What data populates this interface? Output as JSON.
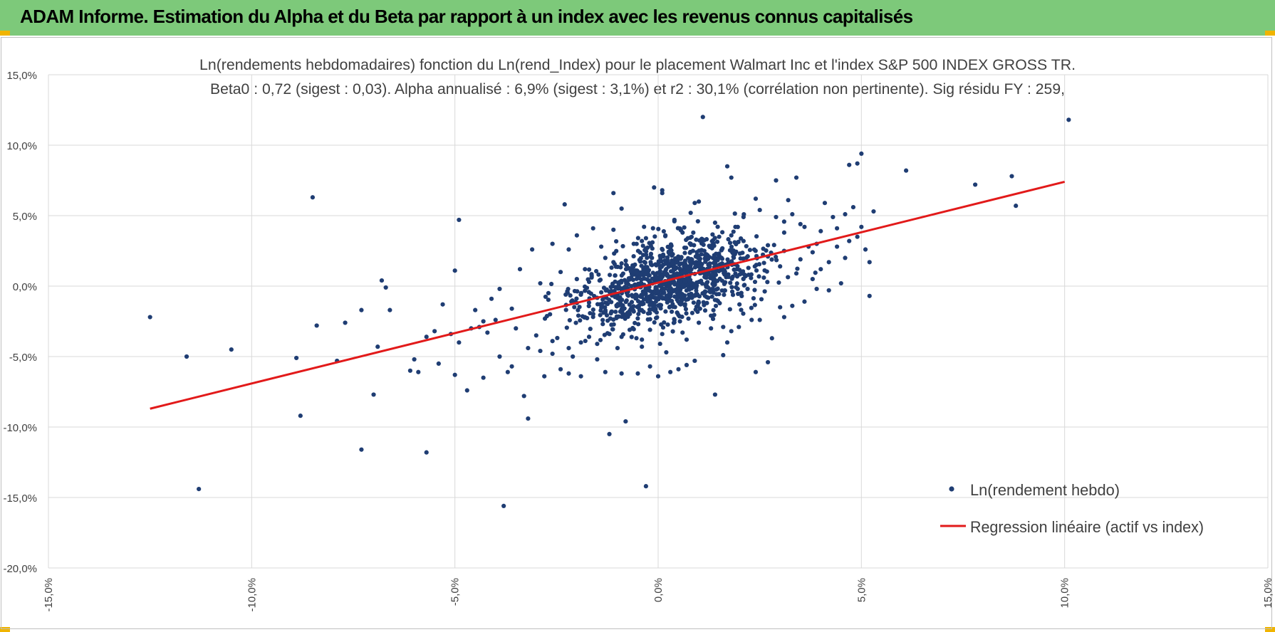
{
  "banner": {
    "title": "ADAM Informe. Estimation du Alpha et du Beta par rapport à un index avec les revenus connus capitalisés"
  },
  "colors": {
    "banner": "#7dc97a",
    "accent": "#f0b400",
    "points": "#1f3d73",
    "regression": "#e21a1a",
    "grid": "#d9d9d9"
  },
  "chart_data": {
    "type": "scatter",
    "title": "Ln(rendements hebdomadaires) fonction du Ln(rend_Index) pour le placement Walmart Inc et l'index S&P 500 INDEX GROSS TR.",
    "subtitle": "Beta0 : 0,72 (sigest : 0,03). Alpha annualisé : 6,9% (sigest : 3,1%) et r2 : 30,1% (corrélation non pertinente). Sig résidu FY : 259,",
    "xlim": [
      -0.15,
      0.15
    ],
    "ylim": [
      -0.2,
      0.15
    ],
    "x_ticks": [
      -0.15,
      -0.1,
      -0.05,
      0.0,
      0.05,
      0.1,
      0.15
    ],
    "x_tick_labels": [
      "-15,0%",
      "-10,0%",
      "-5,0%",
      "0,0%",
      "5,0%",
      "10,0%",
      "15,0%"
    ],
    "y_ticks": [
      0.15,
      0.1,
      0.05,
      0.0,
      -0.05,
      -0.1,
      -0.15,
      -0.2
    ],
    "y_tick_labels": [
      "15,0%",
      "10,0%",
      "5,0%",
      "0,0%",
      "-5,0%",
      "-10,0%",
      "-15,0%",
      "-20,0%"
    ],
    "grid": true,
    "legend_position": "bottom-right",
    "series": [
      {
        "name": "Ln(rendement hebdo)",
        "type": "scatter",
        "points": [
          [
            -0.125,
            -0.022
          ],
          [
            -0.116,
            -0.05
          ],
          [
            -0.113,
            -0.144
          ],
          [
            -0.105,
            -0.045
          ],
          [
            -0.085,
            0.063
          ],
          [
            -0.084,
            -0.028
          ],
          [
            -0.089,
            -0.051
          ],
          [
            -0.088,
            -0.092
          ],
          [
            -0.079,
            -0.053
          ],
          [
            -0.077,
            -0.026
          ],
          [
            -0.073,
            -0.017
          ],
          [
            -0.073,
            -0.116
          ],
          [
            -0.07,
            -0.077
          ],
          [
            -0.069,
            -0.043
          ],
          [
            -0.068,
            0.004
          ],
          [
            -0.067,
            -0.001
          ],
          [
            -0.066,
            -0.017
          ],
          [
            -0.061,
            -0.06
          ],
          [
            -0.06,
            -0.052
          ],
          [
            -0.059,
            -0.061
          ],
          [
            -0.057,
            -0.118
          ],
          [
            -0.057,
            -0.036
          ],
          [
            -0.055,
            -0.032
          ],
          [
            -0.054,
            -0.055
          ],
          [
            -0.053,
            -0.013
          ],
          [
            -0.051,
            -0.034
          ],
          [
            -0.05,
            0.011
          ],
          [
            -0.05,
            -0.063
          ],
          [
            -0.049,
            0.047
          ],
          [
            -0.049,
            -0.04
          ],
          [
            -0.047,
            -0.074
          ],
          [
            -0.046,
            -0.03
          ],
          [
            -0.044,
            -0.029
          ],
          [
            -0.043,
            -0.025
          ],
          [
            -0.043,
            -0.065
          ],
          [
            -0.042,
            -0.033
          ],
          [
            -0.04,
            -0.024
          ],
          [
            -0.039,
            -0.05
          ],
          [
            -0.038,
            -0.156
          ],
          [
            -0.037,
            -0.061
          ],
          [
            -0.036,
            -0.057
          ],
          [
            -0.035,
            -0.03
          ],
          [
            -0.033,
            -0.078
          ],
          [
            -0.032,
            -0.094
          ],
          [
            -0.03,
            -0.035
          ],
          [
            -0.028,
            -0.064
          ],
          [
            -0.026,
            -0.048
          ],
          [
            -0.024,
            -0.059
          ],
          [
            -0.023,
            0.058
          ],
          [
            -0.022,
            -0.062
          ],
          [
            -0.021,
            -0.05
          ],
          [
            -0.02,
            -0.012
          ],
          [
            -0.019,
            -0.064
          ],
          [
            -0.018,
            -0.022
          ],
          [
            -0.017,
            -0.036
          ],
          [
            -0.016,
            0.041
          ],
          [
            -0.015,
            -0.052
          ],
          [
            -0.013,
            -0.061
          ],
          [
            -0.012,
            -0.105
          ],
          [
            -0.011,
            0.066
          ],
          [
            -0.01,
            -0.044
          ],
          [
            -0.009,
            -0.062
          ],
          [
            -0.009,
            0.055
          ],
          [
            -0.008,
            -0.096
          ],
          [
            -0.007,
            -0.031
          ],
          [
            -0.006,
            -0.018
          ],
          [
            -0.005,
            -0.062
          ],
          [
            -0.004,
            -0.043
          ],
          [
            -0.003,
            -0.142
          ],
          [
            -0.003,
            0.034
          ],
          [
            -0.002,
            -0.057
          ],
          [
            -0.001,
            0.07
          ],
          [
            0.0,
            -0.064
          ],
          [
            0.001,
            0.068
          ],
          [
            0.002,
            -0.047
          ],
          [
            0.003,
            -0.061
          ],
          [
            0.004,
            0.046
          ],
          [
            0.005,
            -0.059
          ],
          [
            0.006,
            -0.033
          ],
          [
            0.007,
            -0.056
          ],
          [
            0.008,
            0.052
          ],
          [
            0.009,
            0.059
          ],
          [
            0.01,
            0.06
          ],
          [
            0.011,
            0.12
          ],
          [
            0.012,
            -0.012
          ],
          [
            0.013,
            -0.03
          ],
          [
            0.015,
            0.035
          ],
          [
            0.016,
            -0.049
          ],
          [
            0.017,
            -0.04
          ],
          [
            0.018,
            -0.032
          ],
          [
            0.019,
            0.042
          ],
          [
            0.02,
            -0.013
          ],
          [
            0.021,
            0.032
          ],
          [
            0.022,
            -0.002
          ],
          [
            0.023,
            -0.024
          ],
          [
            0.024,
            -0.061
          ],
          [
            0.025,
            -0.024
          ],
          [
            0.026,
            0.006
          ],
          [
            0.027,
            -0.054
          ],
          [
            0.028,
            -0.037
          ],
          [
            0.029,
            0.049
          ],
          [
            0.03,
            -0.015
          ],
          [
            0.031,
            -0.022
          ],
          [
            0.032,
            0.061
          ],
          [
            0.033,
            -0.014
          ],
          [
            0.034,
            0.077
          ],
          [
            0.035,
            0.044
          ],
          [
            0.036,
            -0.011
          ],
          [
            0.037,
            0.028
          ],
          [
            0.038,
            0.005
          ],
          [
            0.039,
            -0.002
          ],
          [
            0.04,
            0.039
          ],
          [
            0.041,
            0.059
          ],
          [
            0.042,
            -0.003
          ],
          [
            0.043,
            0.049
          ],
          [
            0.044,
            0.041
          ],
          [
            0.045,
            0.002
          ],
          [
            0.046,
            0.051
          ],
          [
            0.047,
            0.086
          ],
          [
            0.048,
            0.056
          ],
          [
            0.049,
            0.087
          ],
          [
            0.05,
            0.094
          ],
          [
            0.05,
            0.042
          ],
          [
            0.051,
            0.026
          ],
          [
            0.052,
            0.017
          ],
          [
            0.052,
            -0.007
          ],
          [
            0.053,
            0.053
          ],
          [
            0.061,
            0.082
          ],
          [
            0.078,
            0.072
          ],
          [
            0.087,
            0.078
          ],
          [
            0.088,
            0.057
          ],
          [
            0.101,
            0.118
          ],
          [
            0.001,
            0.066
          ],
          [
            0.017,
            0.085
          ],
          [
            0.018,
            0.077
          ],
          [
            0.029,
            0.075
          ],
          [
            0.014,
            -0.077
          ],
          [
            0.024,
            0.062
          ],
          [
            0.009,
            -0.053
          ],
          [
            0.004,
            0.047
          ],
          [
            -0.024,
            0.01
          ],
          [
            -0.026,
            0.03
          ],
          [
            -0.031,
            0.026
          ],
          [
            -0.034,
            0.012
          ],
          [
            -0.036,
            -0.016
          ],
          [
            -0.039,
            -0.002
          ],
          [
            -0.041,
            -0.009
          ],
          [
            -0.045,
            -0.017
          ],
          [
            -0.027,
            -0.005
          ],
          [
            -0.029,
            0.002
          ],
          [
            -0.022,
            0.026
          ],
          [
            -0.02,
            0.036
          ],
          [
            -0.018,
            0.012
          ],
          [
            -0.017,
            0.003
          ],
          [
            -0.014,
            0.028
          ],
          [
            -0.013,
            0.02
          ],
          [
            -0.011,
            0.017
          ],
          [
            -0.011,
            0.04
          ],
          [
            -0.006,
            0.03
          ],
          [
            -0.004,
            0.032
          ],
          [
            0.006,
            0.038
          ],
          [
            0.008,
            0.03
          ],
          [
            0.011,
            0.033
          ],
          [
            0.014,
            0.045
          ],
          [
            0.018,
            0.036
          ],
          [
            0.021,
            0.049
          ],
          [
            0.025,
            0.054
          ],
          [
            0.027,
            0.029
          ],
          [
            0.031,
            0.038
          ],
          [
            0.033,
            0.051
          ],
          [
            0.036,
            0.042
          ],
          [
            0.039,
            0.03
          ],
          [
            0.044,
            0.028
          ],
          [
            0.047,
            0.032
          ],
          [
            0.049,
            0.035
          ],
          [
            0.046,
            0.02
          ],
          [
            -0.004,
            -0.038
          ],
          [
            -0.002,
            -0.031
          ],
          [
            0.001,
            -0.034
          ],
          [
            0.004,
            -0.024
          ],
          [
            0.007,
            -0.038
          ],
          [
            0.01,
            -0.026
          ],
          [
            0.013,
            -0.021
          ],
          [
            0.016,
            -0.029
          ],
          [
            -0.009,
            -0.036
          ],
          [
            -0.012,
            -0.034
          ],
          [
            -0.015,
            -0.041
          ],
          [
            -0.019,
            -0.04
          ],
          [
            -0.022,
            -0.044
          ],
          [
            -0.026,
            -0.039
          ],
          [
            -0.029,
            -0.046
          ],
          [
            -0.032,
            -0.044
          ],
          [
            0.03,
            0.014
          ],
          [
            0.035,
            0.019
          ],
          [
            0.04,
            0.012
          ],
          [
            0.042,
            0.017
          ],
          [
            0.038,
            0.024
          ],
          [
            0.034,
            0.009
          ],
          [
            0.031,
            0.025
          ],
          [
            0.027,
            0.021
          ]
        ]
      },
      {
        "name": "Regression linéaire (actif vs index)",
        "type": "line",
        "points": [
          [
            -0.125,
            -0.087
          ],
          [
            0.1,
            0.074
          ]
        ]
      }
    ],
    "cloud": {
      "note": "dense central cluster of weekly returns around the regression line",
      "center_x": 0.003,
      "center_y": 0.002,
      "beta": 0.72,
      "intercept": 0.0015,
      "count": 1050
    }
  },
  "legend": {
    "scatter_label": "Ln(rendement hebdo)",
    "line_label": "Regression linéaire (actif vs index)"
  }
}
